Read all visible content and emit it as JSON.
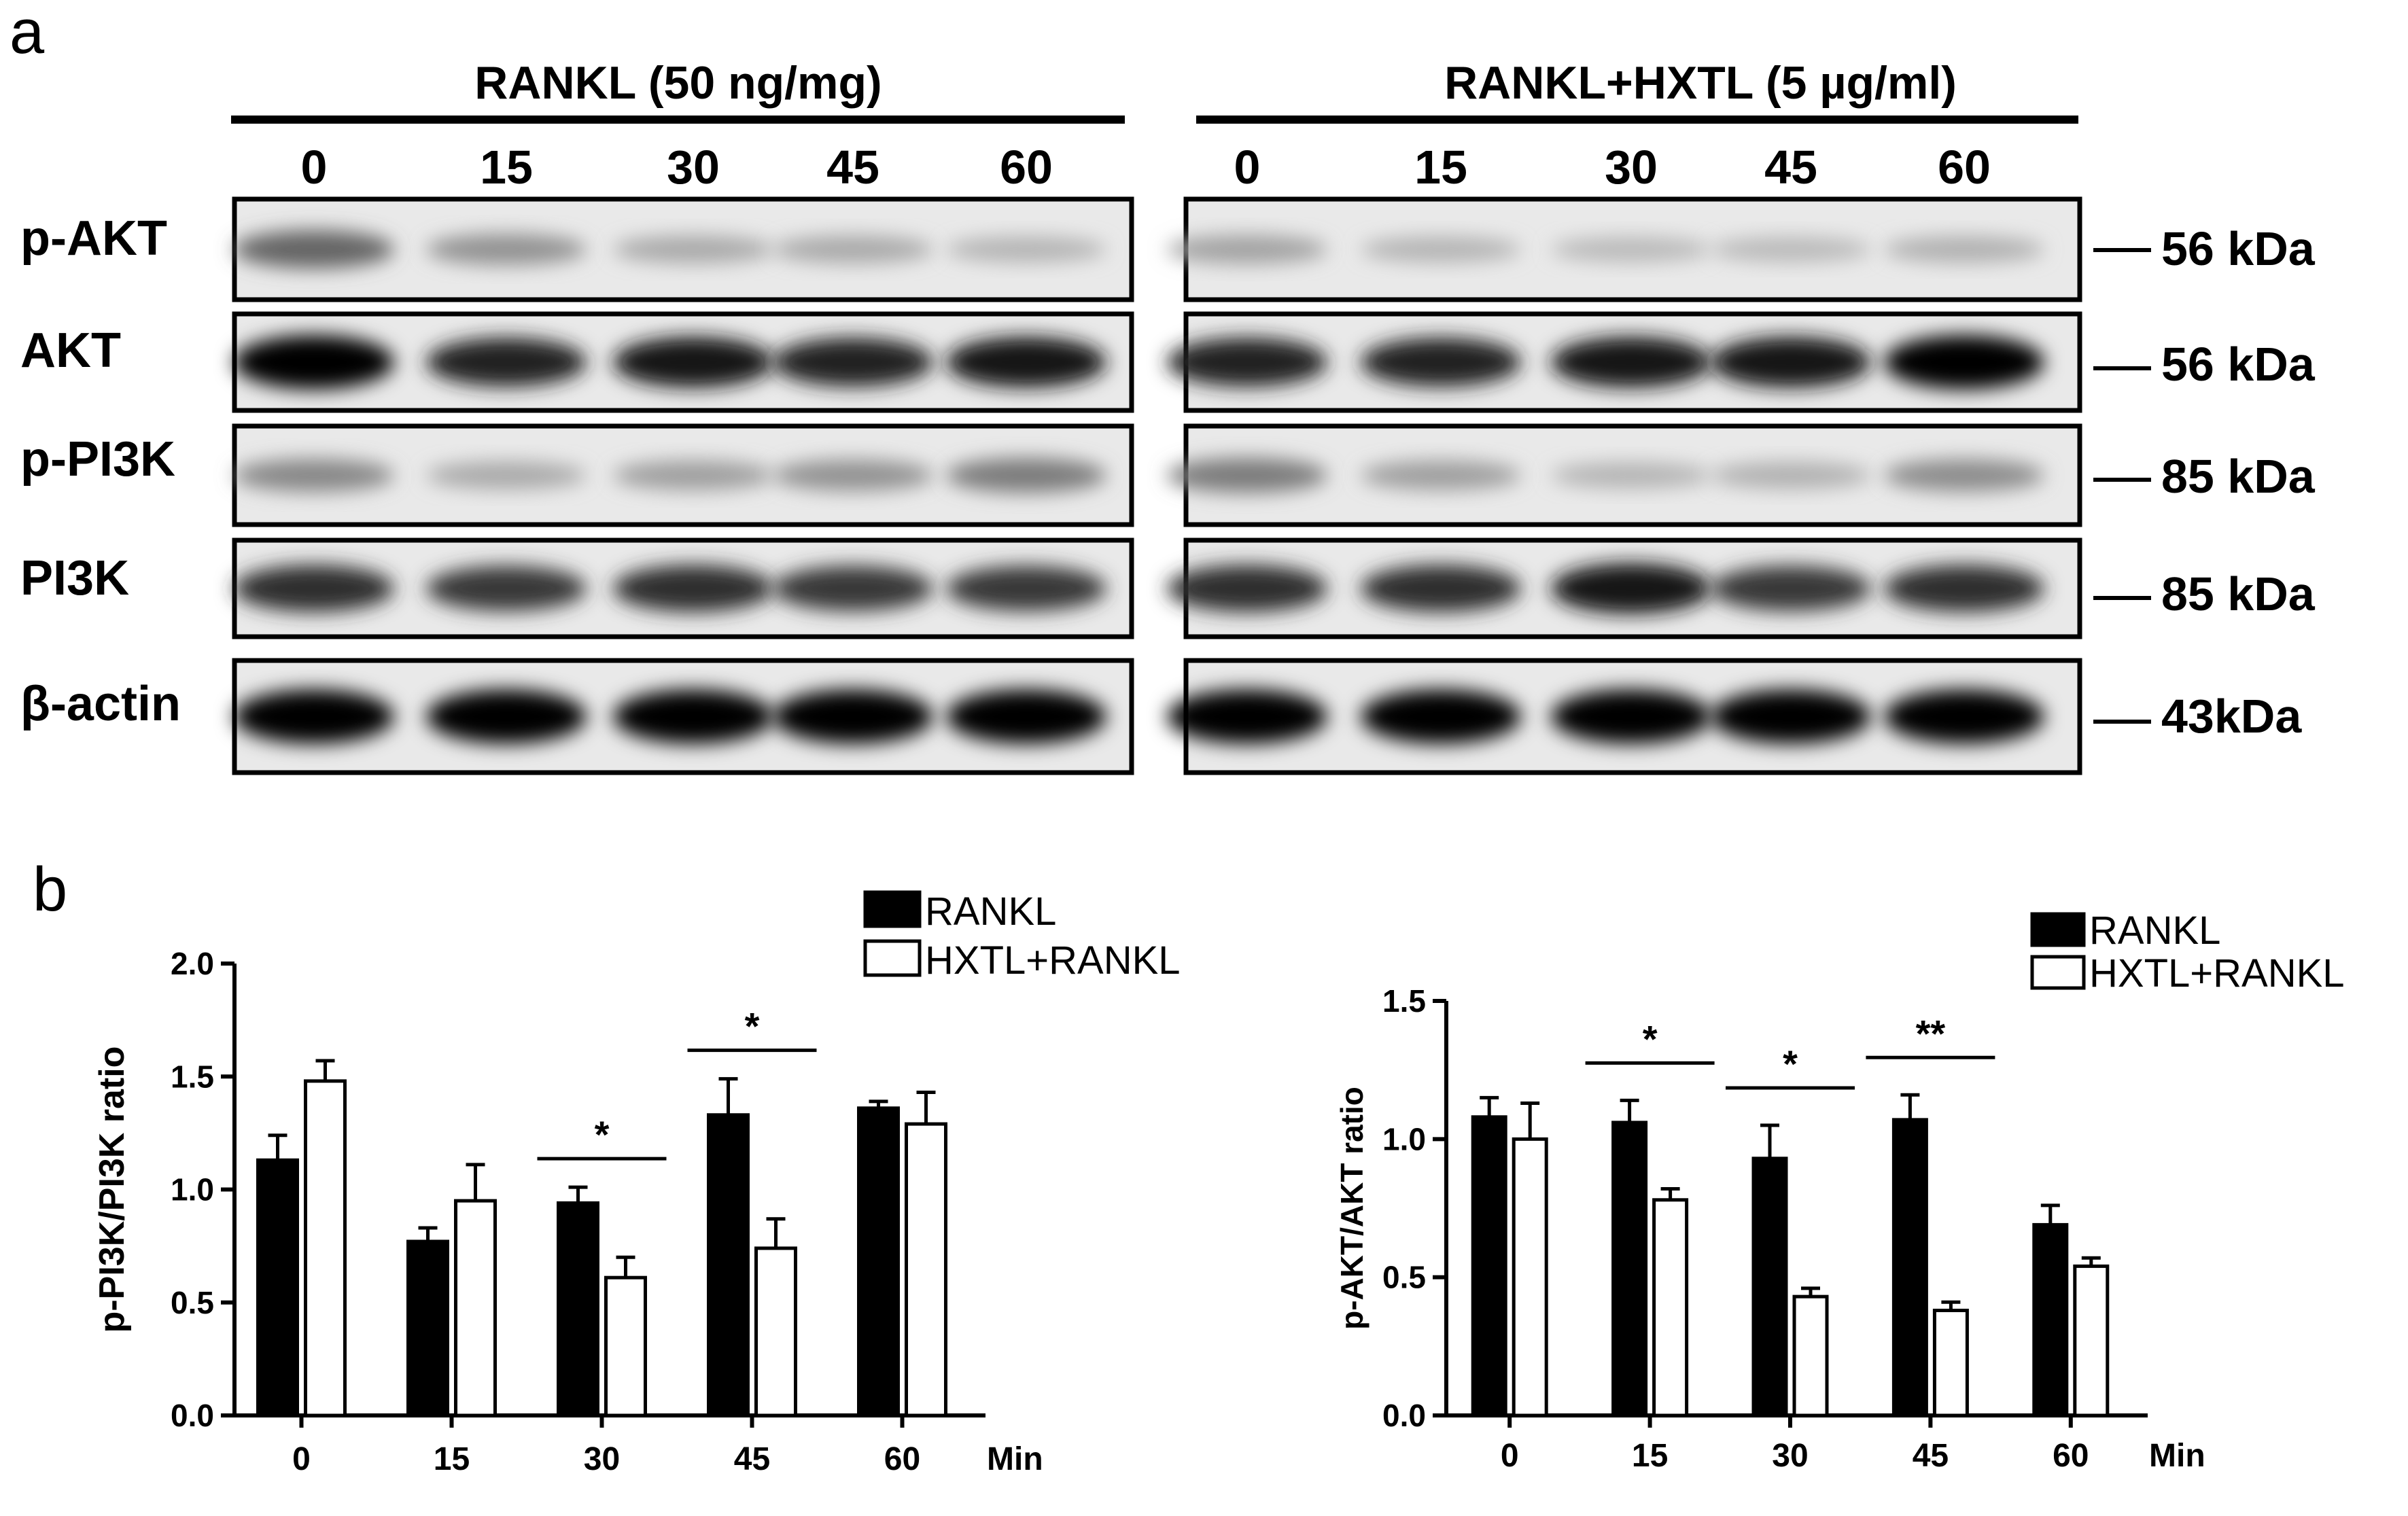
{
  "panel_a": {
    "label": "a",
    "left_group": {
      "title": "RANKL (50 ng/mg)",
      "lanes": [
        "0",
        "15",
        "30",
        "45",
        "60"
      ]
    },
    "right_group": {
      "title": "RANKL+HXTL (5 µg/ml)",
      "lanes": [
        "0",
        "15",
        "30",
        "45",
        "60"
      ]
    },
    "blots": [
      {
        "name": "p-AKT",
        "mw": "56 kDa",
        "left_intensity": [
          0.55,
          0.35,
          0.25,
          0.25,
          0.2
        ],
        "right_intensity": [
          0.28,
          0.2,
          0.18,
          0.18,
          0.22
        ]
      },
      {
        "name": "AKT",
        "mw": "56 kDa",
        "left_intensity": [
          1.0,
          0.85,
          0.9,
          0.85,
          0.9
        ],
        "right_intensity": [
          0.85,
          0.85,
          0.9,
          0.9,
          1.0
        ]
      },
      {
        "name": "p-PI3K",
        "mw": "85 kDa",
        "left_intensity": [
          0.4,
          0.25,
          0.3,
          0.35,
          0.45
        ],
        "right_intensity": [
          0.45,
          0.3,
          0.2,
          0.22,
          0.38
        ]
      },
      {
        "name": "PI3K",
        "mw": "85 kDa",
        "left_intensity": [
          0.8,
          0.75,
          0.8,
          0.75,
          0.75
        ],
        "right_intensity": [
          0.8,
          0.8,
          0.9,
          0.75,
          0.8
        ]
      },
      {
        "name": "β-actin",
        "mw": "43kDa",
        "left_intensity": [
          1.0,
          1.0,
          1.0,
          1.0,
          1.0
        ],
        "right_intensity": [
          1.0,
          1.0,
          1.0,
          1.0,
          1.0
        ]
      }
    ]
  },
  "panel_b": {
    "label": "b"
  },
  "colors": {
    "rankl_fill": "#000000",
    "hxtl_fill": "#ffffff",
    "ink": "#000000"
  },
  "chart_data": [
    {
      "type": "bar",
      "ylabel": "p-PI3K/PI3K ratio",
      "xlabel": "Min",
      "categories": [
        "0",
        "15",
        "30",
        "45",
        "60"
      ],
      "ylim": [
        0,
        2.0
      ],
      "yticks": [
        "0.0",
        "0.5",
        "1.0",
        "1.5",
        "2.0"
      ],
      "legend_position": "top-right",
      "series": [
        {
          "name": "RANKL",
          "values": [
            1.13,
            0.77,
            0.94,
            1.33,
            1.36
          ],
          "errors": [
            0.11,
            0.06,
            0.07,
            0.16,
            0.03
          ]
        },
        {
          "name": "HXTL+RANKL",
          "values": [
            1.48,
            0.95,
            0.61,
            0.74,
            1.29
          ],
          "errors": [
            0.09,
            0.16,
            0.09,
            0.13,
            0.14
          ]
        }
      ],
      "significance": [
        {
          "category": "30",
          "label": "*"
        },
        {
          "category": "45",
          "label": "*"
        }
      ]
    },
    {
      "type": "bar",
      "ylabel": "p-AKT/AKT ratio",
      "xlabel": "Min",
      "categories": [
        "0",
        "15",
        "30",
        "45",
        "60"
      ],
      "ylim": [
        0,
        1.5
      ],
      "yticks": [
        "0.0",
        "0.5",
        "1.0",
        "1.5"
      ],
      "legend_position": "top-right",
      "series": [
        {
          "name": "RANKL",
          "values": [
            1.08,
            1.06,
            0.93,
            1.07,
            0.69
          ],
          "errors": [
            0.07,
            0.08,
            0.12,
            0.09,
            0.07
          ]
        },
        {
          "name": "HXTL+RANKL",
          "values": [
            1.0,
            0.78,
            0.43,
            0.38,
            0.54
          ],
          "errors": [
            0.13,
            0.04,
            0.03,
            0.03,
            0.03
          ]
        }
      ],
      "significance": [
        {
          "category": "15",
          "label": "*"
        },
        {
          "category": "30",
          "label": "*"
        },
        {
          "category": "45",
          "label": "**"
        }
      ]
    }
  ]
}
